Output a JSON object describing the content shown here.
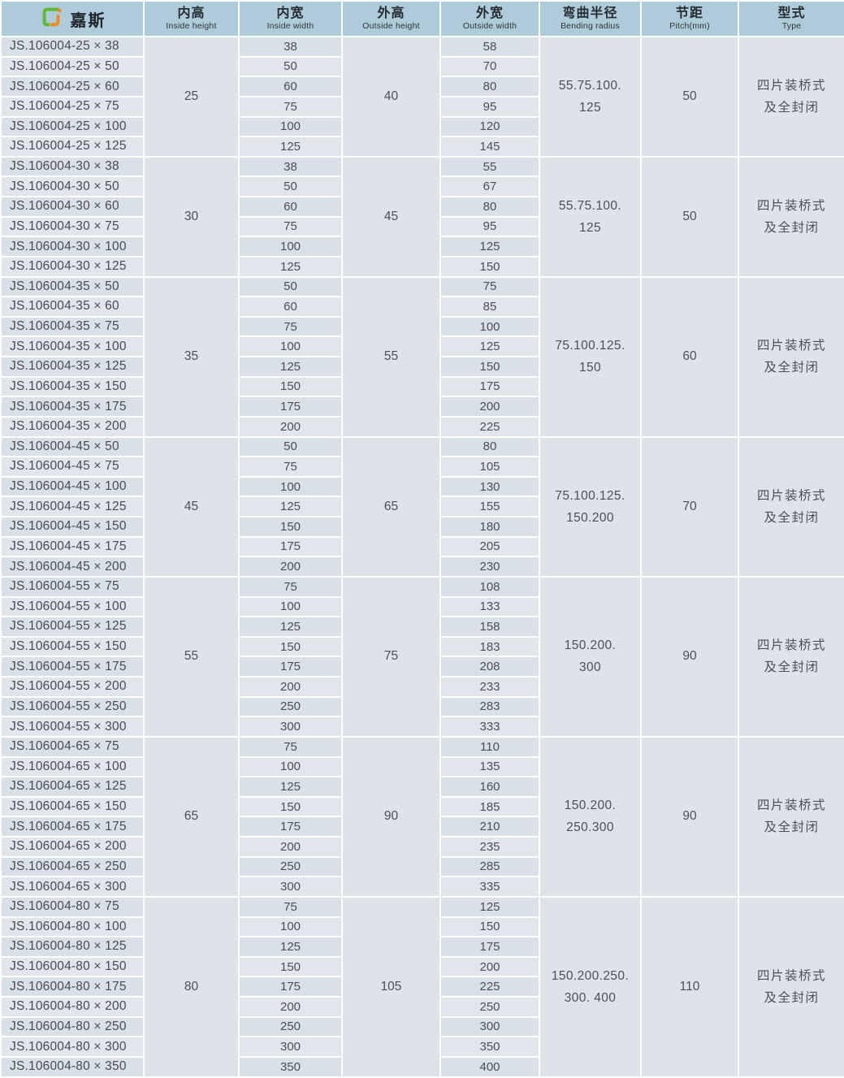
{
  "brand": {
    "name": "嘉斯",
    "logo": {
      "icon": "interlocked-square-logo-icon",
      "green": "#5fb832",
      "orange": "#f28a1d"
    }
  },
  "colors": {
    "header_bg": "#aecbd9",
    "cell_bg": "#dee3ea",
    "cell_bg_dark": "#dae0e8",
    "cell_bg_light": "#e2e6ec",
    "grid_white": "#ffffff",
    "text_dark": "#262b30",
    "text_cell": "#4b5057"
  },
  "columns": [
    {
      "zh": "内高",
      "en": "Inside height"
    },
    {
      "zh": "内宽",
      "en": "Inside width"
    },
    {
      "zh": "外高",
      "en": "Outside height"
    },
    {
      "zh": "外宽",
      "en": "Outside width"
    },
    {
      "zh": "弯曲半径",
      "en": "Bending radius"
    },
    {
      "zh": "节距",
      "en": "Pitch(mm)"
    },
    {
      "zh": "型式",
      "en": "Type"
    }
  ],
  "table": {
    "groups": [
      {
        "inside_height": "25",
        "outside_height": "40",
        "bending_radius": "55.75.100.\n125",
        "pitch": "50",
        "type": "四片装桥式\n及全封闭",
        "rows": [
          {
            "model": "JS.106004-25 × 38",
            "inside_width": "38",
            "outside_width": "58"
          },
          {
            "model": "JS.106004-25 × 50",
            "inside_width": "50",
            "outside_width": "70"
          },
          {
            "model": "JS.106004-25 × 60",
            "inside_width": "60",
            "outside_width": "80"
          },
          {
            "model": "JS.106004-25 × 75",
            "inside_width": "75",
            "outside_width": "95"
          },
          {
            "model": "JS.106004-25 × 100",
            "inside_width": "100",
            "outside_width": "120"
          },
          {
            "model": "JS.106004-25 × 125",
            "inside_width": "125",
            "outside_width": "145"
          }
        ]
      },
      {
        "inside_height": "30",
        "outside_height": "45",
        "bending_radius": "55.75.100.\n125",
        "pitch": "50",
        "type": "四片装桥式\n及全封闭",
        "rows": [
          {
            "model": "JS.106004-30 × 38",
            "inside_width": "38",
            "outside_width": "55"
          },
          {
            "model": "JS.106004-30 × 50",
            "inside_width": "50",
            "outside_width": "67"
          },
          {
            "model": "JS.106004-30 × 60",
            "inside_width": "60",
            "outside_width": "80"
          },
          {
            "model": "JS.106004-30 × 75",
            "inside_width": "75",
            "outside_width": "95"
          },
          {
            "model": "JS.106004-30 × 100",
            "inside_width": "100",
            "outside_width": "125"
          },
          {
            "model": "JS.106004-30 × 125",
            "inside_width": "125",
            "outside_width": "150"
          }
        ]
      },
      {
        "inside_height": "35",
        "outside_height": "55",
        "bending_radius": "75.100.125.\n150",
        "pitch": "60",
        "type": "四片装桥式\n及全封闭",
        "rows": [
          {
            "model": "JS.106004-35 × 50",
            "inside_width": "50",
            "outside_width": "75"
          },
          {
            "model": "JS.106004-35 × 60",
            "inside_width": "60",
            "outside_width": "85"
          },
          {
            "model": "JS.106004-35 × 75",
            "inside_width": "75",
            "outside_width": "100"
          },
          {
            "model": "JS.106004-35 × 100",
            "inside_width": "100",
            "outside_width": "125"
          },
          {
            "model": "JS.106004-35 × 125",
            "inside_width": "125",
            "outside_width": "150"
          },
          {
            "model": "JS.106004-35 × 150",
            "inside_width": "150",
            "outside_width": "175"
          },
          {
            "model": "JS.106004-35 × 175",
            "inside_width": "175",
            "outside_width": "200"
          },
          {
            "model": "JS.106004-35 × 200",
            "inside_width": "200",
            "outside_width": "225"
          }
        ]
      },
      {
        "inside_height": "45",
        "outside_height": "65",
        "bending_radius": "75.100.125.\n150.200",
        "pitch": "70",
        "type": "四片装桥式\n及全封闭",
        "rows": [
          {
            "model": "JS.106004-45 × 50",
            "inside_width": "50",
            "outside_width": "80"
          },
          {
            "model": "JS.106004-45 × 75",
            "inside_width": "75",
            "outside_width": "105"
          },
          {
            "model": "JS.106004-45 × 100",
            "inside_width": "100",
            "outside_width": "130"
          },
          {
            "model": "JS.106004-45 × 125",
            "inside_width": "125",
            "outside_width": "155"
          },
          {
            "model": "JS.106004-45 × 150",
            "inside_width": "150",
            "outside_width": "180"
          },
          {
            "model": "JS.106004-45 × 175",
            "inside_width": "175",
            "outside_width": "205"
          },
          {
            "model": "JS.106004-45 × 200",
            "inside_width": "200",
            "outside_width": "230"
          }
        ]
      },
      {
        "inside_height": "55",
        "outside_height": "75",
        "bending_radius": "150.200.\n300",
        "pitch": "90",
        "type": "四片装桥式\n及全封闭",
        "rows": [
          {
            "model": "JS.106004-55 × 75",
            "inside_width": "75",
            "outside_width": "108"
          },
          {
            "model": "JS.106004-55 × 100",
            "inside_width": "100",
            "outside_width": "133"
          },
          {
            "model": "JS.106004-55 × 125",
            "inside_width": "125",
            "outside_width": "158"
          },
          {
            "model": "JS.106004-55 × 150",
            "inside_width": "150",
            "outside_width": "183"
          },
          {
            "model": "JS.106004-55 × 175",
            "inside_width": "175",
            "outside_width": "208"
          },
          {
            "model": "JS.106004-55 × 200",
            "inside_width": "200",
            "outside_width": "233"
          },
          {
            "model": "JS.106004-55 × 250",
            "inside_width": "250",
            "outside_width": "283"
          },
          {
            "model": "JS.106004-55 × 300",
            "inside_width": "300",
            "outside_width": "333"
          }
        ]
      },
      {
        "inside_height": "65",
        "outside_height": "90",
        "bending_radius": "150.200.\n250.300",
        "pitch": "90",
        "type": "四片装桥式\n及全封闭",
        "rows": [
          {
            "model": "JS.106004-65 × 75",
            "inside_width": "75",
            "outside_width": "110"
          },
          {
            "model": "JS.106004-65 × 100",
            "inside_width": "100",
            "outside_width": "135"
          },
          {
            "model": "JS.106004-65 × 125",
            "inside_width": "125",
            "outside_width": "160"
          },
          {
            "model": "JS.106004-65 × 150",
            "inside_width": "150",
            "outside_width": "185"
          },
          {
            "model": "JS.106004-65 × 175",
            "inside_width": "175",
            "outside_width": "210"
          },
          {
            "model": "JS.106004-65 × 200",
            "inside_width": "200",
            "outside_width": "235"
          },
          {
            "model": "JS.106004-65 × 250",
            "inside_width": "250",
            "outside_width": "285"
          },
          {
            "model": "JS.106004-65 × 300",
            "inside_width": "300",
            "outside_width": "335"
          }
        ]
      },
      {
        "inside_height": "80",
        "outside_height": "105",
        "bending_radius": "150.200.250.\n300. 400",
        "pitch": "110",
        "type": "四片装桥式\n及全封闭",
        "rows": [
          {
            "model": "JS.106004-80 × 75",
            "inside_width": "75",
            "outside_width": "125"
          },
          {
            "model": "JS.106004-80 × 100",
            "inside_width": "100",
            "outside_width": "150"
          },
          {
            "model": "JS.106004-80 × 125",
            "inside_width": "125",
            "outside_width": "175"
          },
          {
            "model": "JS.106004-80 × 150",
            "inside_width": "150",
            "outside_width": "200"
          },
          {
            "model": "JS.106004-80 × 175",
            "inside_width": "175",
            "outside_width": "225"
          },
          {
            "model": "JS.106004-80 × 200",
            "inside_width": "200",
            "outside_width": "250"
          },
          {
            "model": "JS.106004-80 × 250",
            "inside_width": "250",
            "outside_width": "300"
          },
          {
            "model": "JS.106004-80 × 300",
            "inside_width": "300",
            "outside_width": "350"
          },
          {
            "model": "JS.106004-80 × 350",
            "inside_width": "350",
            "outside_width": "400"
          }
        ]
      }
    ]
  }
}
